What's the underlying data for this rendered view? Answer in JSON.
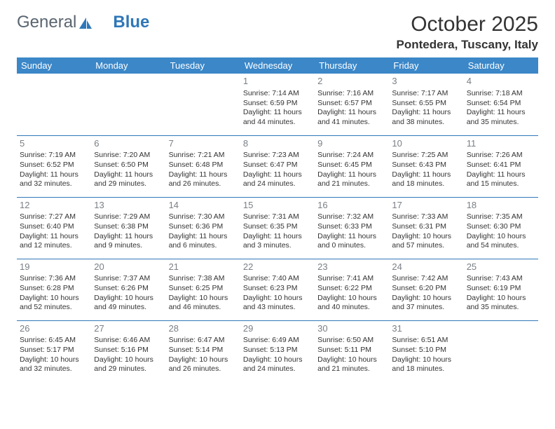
{
  "logo": {
    "part1": "General",
    "part2": "Blue"
  },
  "title": "October 2025",
  "location": "Pontedera, Tuscany, Italy",
  "colors": {
    "header_bg": "#3b87c8",
    "header_text": "#ffffff",
    "rule": "#2f77b8",
    "daynum": "#7a8086",
    "body_text": "#333333",
    "logo_gray": "#5a6570",
    "logo_blue": "#2f77b8",
    "page_bg": "#ffffff"
  },
  "typography": {
    "month_title_size": 30,
    "location_size": 17,
    "weekday_size": 13,
    "daynum_size": 13,
    "cell_size": 10.5
  },
  "weekdays": [
    "Sunday",
    "Monday",
    "Tuesday",
    "Wednesday",
    "Thursday",
    "Friday",
    "Saturday"
  ],
  "weeks": [
    [
      null,
      null,
      null,
      {
        "n": "1",
        "sr": "7:14 AM",
        "ss": "6:59 PM",
        "dl": "11 hours and 44 minutes."
      },
      {
        "n": "2",
        "sr": "7:16 AM",
        "ss": "6:57 PM",
        "dl": "11 hours and 41 minutes."
      },
      {
        "n": "3",
        "sr": "7:17 AM",
        "ss": "6:55 PM",
        "dl": "11 hours and 38 minutes."
      },
      {
        "n": "4",
        "sr": "7:18 AM",
        "ss": "6:54 PM",
        "dl": "11 hours and 35 minutes."
      }
    ],
    [
      {
        "n": "5",
        "sr": "7:19 AM",
        "ss": "6:52 PM",
        "dl": "11 hours and 32 minutes."
      },
      {
        "n": "6",
        "sr": "7:20 AM",
        "ss": "6:50 PM",
        "dl": "11 hours and 29 minutes."
      },
      {
        "n": "7",
        "sr": "7:21 AM",
        "ss": "6:48 PM",
        "dl": "11 hours and 26 minutes."
      },
      {
        "n": "8",
        "sr": "7:23 AM",
        "ss": "6:47 PM",
        "dl": "11 hours and 24 minutes."
      },
      {
        "n": "9",
        "sr": "7:24 AM",
        "ss": "6:45 PM",
        "dl": "11 hours and 21 minutes."
      },
      {
        "n": "10",
        "sr": "7:25 AM",
        "ss": "6:43 PM",
        "dl": "11 hours and 18 minutes."
      },
      {
        "n": "11",
        "sr": "7:26 AM",
        "ss": "6:41 PM",
        "dl": "11 hours and 15 minutes."
      }
    ],
    [
      {
        "n": "12",
        "sr": "7:27 AM",
        "ss": "6:40 PM",
        "dl": "11 hours and 12 minutes."
      },
      {
        "n": "13",
        "sr": "7:29 AM",
        "ss": "6:38 PM",
        "dl": "11 hours and 9 minutes."
      },
      {
        "n": "14",
        "sr": "7:30 AM",
        "ss": "6:36 PM",
        "dl": "11 hours and 6 minutes."
      },
      {
        "n": "15",
        "sr": "7:31 AM",
        "ss": "6:35 PM",
        "dl": "11 hours and 3 minutes."
      },
      {
        "n": "16",
        "sr": "7:32 AM",
        "ss": "6:33 PM",
        "dl": "11 hours and 0 minutes."
      },
      {
        "n": "17",
        "sr": "7:33 AM",
        "ss": "6:31 PM",
        "dl": "10 hours and 57 minutes."
      },
      {
        "n": "18",
        "sr": "7:35 AM",
        "ss": "6:30 PM",
        "dl": "10 hours and 54 minutes."
      }
    ],
    [
      {
        "n": "19",
        "sr": "7:36 AM",
        "ss": "6:28 PM",
        "dl": "10 hours and 52 minutes."
      },
      {
        "n": "20",
        "sr": "7:37 AM",
        "ss": "6:26 PM",
        "dl": "10 hours and 49 minutes."
      },
      {
        "n": "21",
        "sr": "7:38 AM",
        "ss": "6:25 PM",
        "dl": "10 hours and 46 minutes."
      },
      {
        "n": "22",
        "sr": "7:40 AM",
        "ss": "6:23 PM",
        "dl": "10 hours and 43 minutes."
      },
      {
        "n": "23",
        "sr": "7:41 AM",
        "ss": "6:22 PM",
        "dl": "10 hours and 40 minutes."
      },
      {
        "n": "24",
        "sr": "7:42 AM",
        "ss": "6:20 PM",
        "dl": "10 hours and 37 minutes."
      },
      {
        "n": "25",
        "sr": "7:43 AM",
        "ss": "6:19 PM",
        "dl": "10 hours and 35 minutes."
      }
    ],
    [
      {
        "n": "26",
        "sr": "6:45 AM",
        "ss": "5:17 PM",
        "dl": "10 hours and 32 minutes."
      },
      {
        "n": "27",
        "sr": "6:46 AM",
        "ss": "5:16 PM",
        "dl": "10 hours and 29 minutes."
      },
      {
        "n": "28",
        "sr": "6:47 AM",
        "ss": "5:14 PM",
        "dl": "10 hours and 26 minutes."
      },
      {
        "n": "29",
        "sr": "6:49 AM",
        "ss": "5:13 PM",
        "dl": "10 hours and 24 minutes."
      },
      {
        "n": "30",
        "sr": "6:50 AM",
        "ss": "5:11 PM",
        "dl": "10 hours and 21 minutes."
      },
      {
        "n": "31",
        "sr": "6:51 AM",
        "ss": "5:10 PM",
        "dl": "10 hours and 18 minutes."
      },
      null
    ]
  ],
  "labels": {
    "sunrise": "Sunrise: ",
    "sunset": "Sunset: ",
    "daylight": "Daylight: "
  }
}
